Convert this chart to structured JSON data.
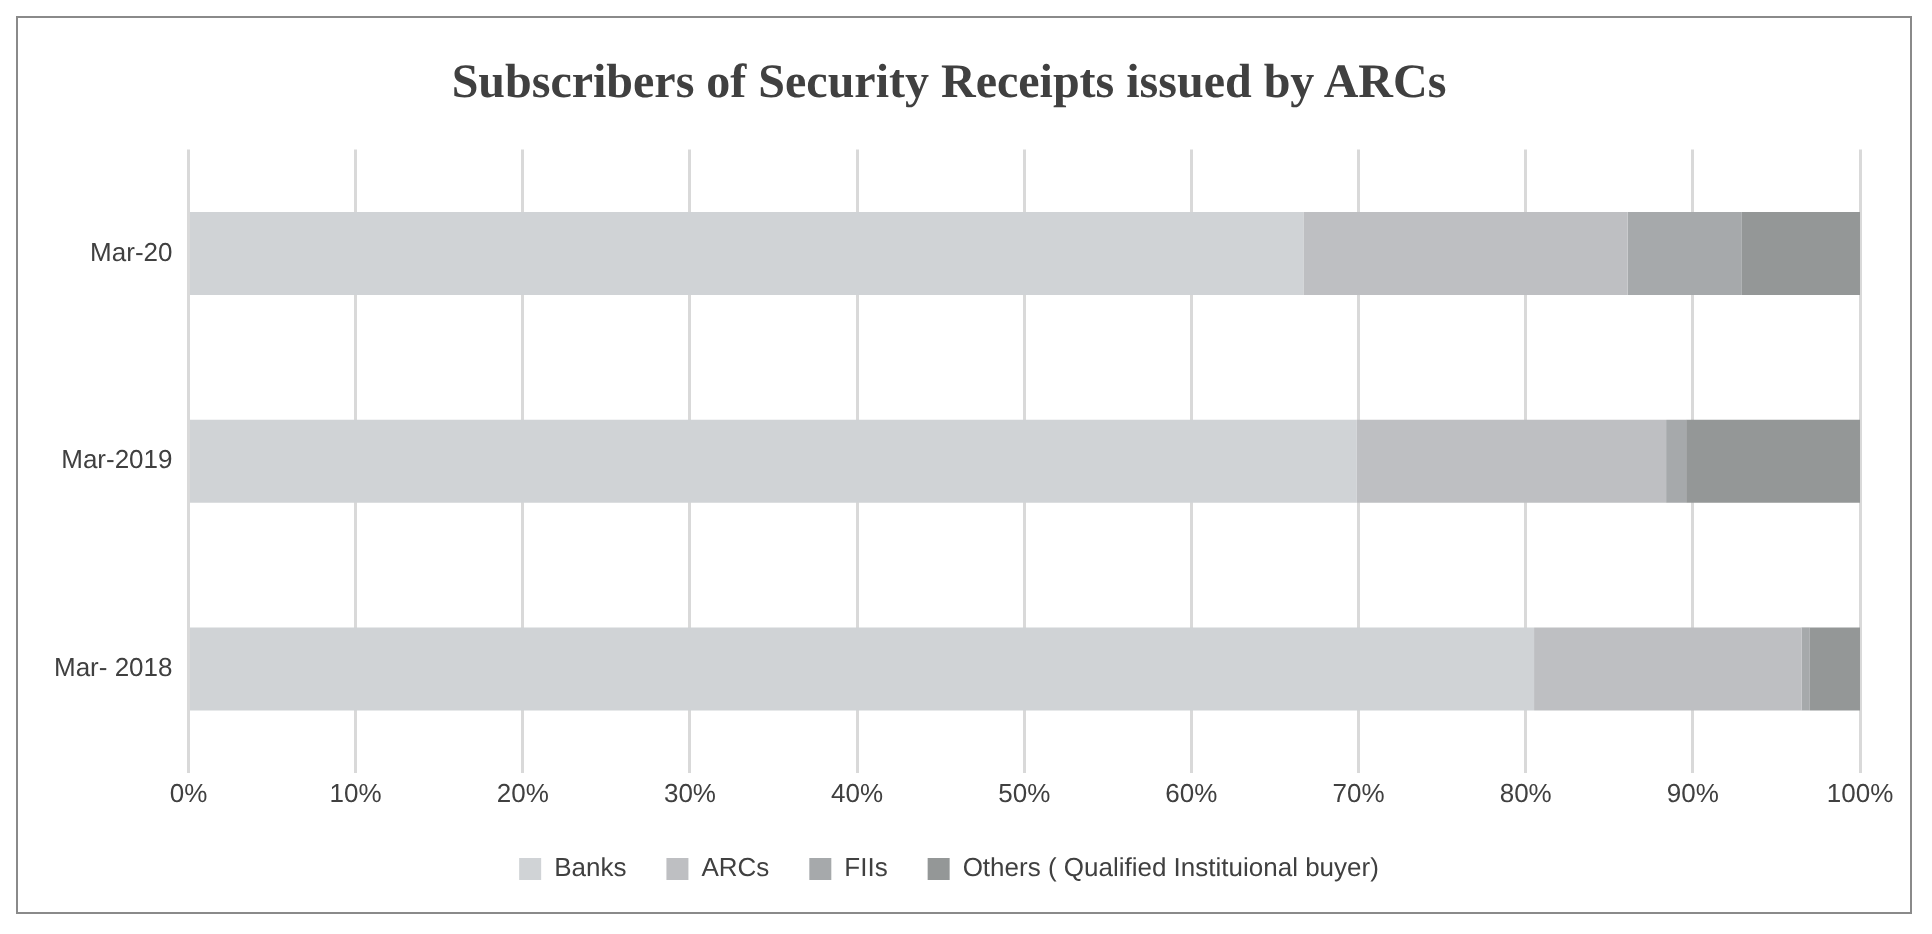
{
  "chart_data": {
    "type": "bar",
    "orientation": "horizontal",
    "stacked": true,
    "title": "Subscribers of Security Receipts issued by ARCs",
    "categories": [
      "Mar-20",
      "Mar-2019",
      "Mar- 2018"
    ],
    "series": [
      {
        "name": "Banks",
        "color": "#d0d3d6",
        "values": [
          66.7,
          69.9,
          80.5
        ]
      },
      {
        "name": "ARCs",
        "color": "#bebfc2",
        "values": [
          19.4,
          18.5,
          16.0
        ]
      },
      {
        "name": "FIIs",
        "color": "#a6a9ab",
        "values": [
          6.8,
          1.2,
          0.5
        ]
      },
      {
        "name": "Others ( Qualified Instituional buyer)",
        "color": "#949797",
        "values": [
          7.1,
          10.4,
          3.0
        ]
      }
    ],
    "xlim": [
      0,
      100
    ],
    "xticks": [
      {
        "value": 0,
        "label": "0%"
      },
      {
        "value": 10,
        "label": "10%"
      },
      {
        "value": 20,
        "label": "20%"
      },
      {
        "value": 30,
        "label": "30%"
      },
      {
        "value": 40,
        "label": "40%"
      },
      {
        "value": 50,
        "label": "50%"
      },
      {
        "value": 60,
        "label": "60%"
      },
      {
        "value": 70,
        "label": "70%"
      },
      {
        "value": 80,
        "label": "80%"
      },
      {
        "value": 90,
        "label": "90%"
      },
      {
        "value": 100,
        "label": "100%"
      }
    ],
    "grid": "x",
    "legend": "bottom"
  }
}
